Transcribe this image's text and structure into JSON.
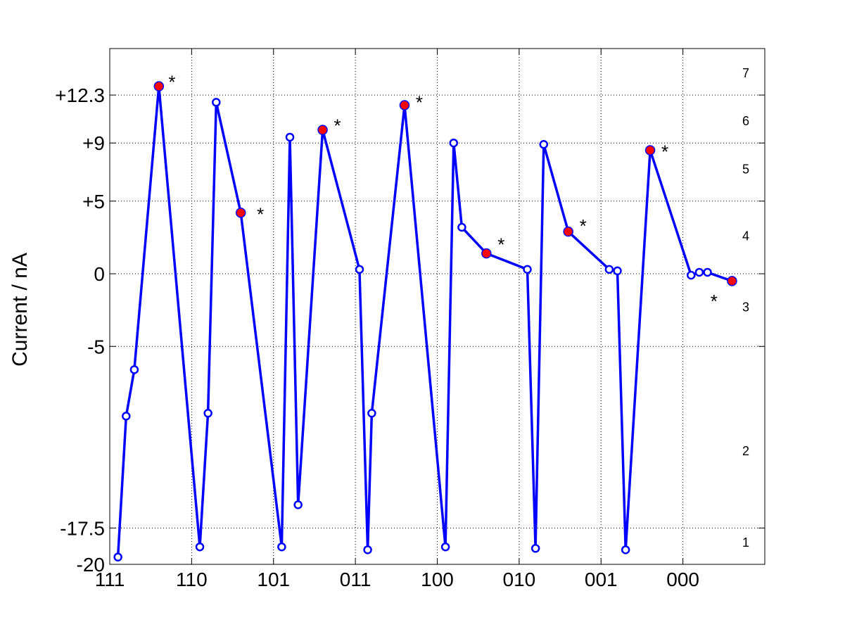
{
  "chart_data": {
    "type": "line",
    "xlabel": "",
    "ylabel": "Current / nA",
    "xlim": [
      0,
      8
    ],
    "ylim": [
      -20,
      15.5
    ],
    "grid": true,
    "x_tick_positions": [
      0,
      1,
      2,
      3,
      4,
      5,
      6,
      7
    ],
    "x_tick_labels": [
      "111",
      "110",
      "101",
      "011",
      "100",
      "010",
      "001",
      "000"
    ],
    "y_tick_values": [
      -20,
      -17.5,
      -5,
      0,
      5,
      9,
      12.3
    ],
    "y_tick_labels": [
      "-20",
      "-17.5",
      "-5",
      "0",
      "+5",
      "+9",
      "+12.3"
    ],
    "right_levels": [
      {
        "y": -18.5,
        "label": "1"
      },
      {
        "y": -12.2,
        "label": "2"
      },
      {
        "y": -2.3,
        "label": "3"
      },
      {
        "y": 2.6,
        "label": "4"
      },
      {
        "y": 7.2,
        "label": "5"
      },
      {
        "y": 10.5,
        "label": "6"
      },
      {
        "y": 13.8,
        "label": "7"
      }
    ],
    "series": [
      {
        "color": "#0000ff",
        "x": [
          0.1,
          0.2,
          0.3,
          0.6,
          1.1,
          1.2,
          1.3,
          1.6,
          2.1,
          2.2,
          2.3,
          2.6,
          3.05,
          3.15,
          3.2,
          3.6,
          4.1,
          4.2,
          4.3,
          4.6,
          5.1,
          5.2,
          5.3,
          5.6,
          6.1,
          6.2,
          6.3,
          6.6,
          7.1,
          7.2,
          7.3,
          7.6
        ],
        "y": [
          -19.5,
          -9.8,
          -6.6,
          12.9,
          -18.8,
          -9.6,
          11.8,
          4.2,
          -18.8,
          9.4,
          -15.9,
          9.9,
          0.3,
          -19,
          -9.6,
          11.6,
          -18.8,
          9,
          3.2,
          1.4,
          0.3,
          -18.9,
          8.9,
          2.9,
          0.3,
          0.2,
          -19,
          8.5,
          -0.1,
          0.1,
          0.1,
          -0.5
        ],
        "highlighted_indices": [
          3,
          7,
          11,
          15,
          19,
          23,
          27,
          31
        ]
      }
    ],
    "annotations": [
      {
        "text": "*",
        "x": 0.76,
        "y": 13.4
      },
      {
        "text": "*",
        "x": 1.84,
        "y": 4.3
      },
      {
        "text": "*",
        "x": 2.78,
        "y": 10.4
      },
      {
        "text": "*",
        "x": 3.78,
        "y": 12.0
      },
      {
        "text": "*",
        "x": 4.78,
        "y": 2.2
      },
      {
        "text": "*",
        "x": 5.78,
        "y": 3.5
      },
      {
        "text": "*",
        "x": 6.78,
        "y": 8.6
      },
      {
        "text": "*",
        "x": 7.38,
        "y": -1.7
      }
    ]
  }
}
